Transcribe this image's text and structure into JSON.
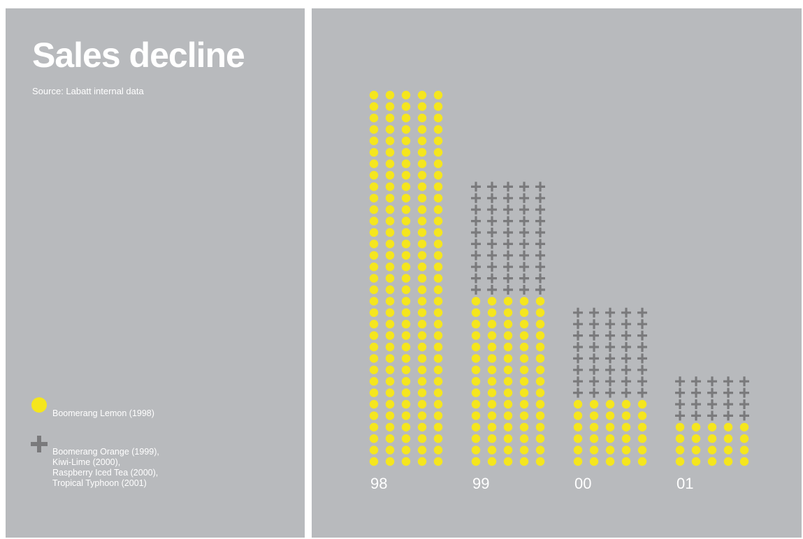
{
  "title": "Sales decline",
  "subtitle": "Source: Labatt internal data",
  "legend": {
    "lemon": {
      "label": "Boomerang Lemon (1998)",
      "icon": "yellow-dot-icon",
      "color": "#f5e61e"
    },
    "others": {
      "label": "Boomerang Orange (1999),\nKiwi-Lime (2000),\nRaspberry Iced Tea (2000),\nTropical Typhoon (2001)",
      "icon": "gray-plus-icon",
      "color": "#7a7a7c"
    }
  },
  "chart_data": {
    "type": "bar",
    "style": "stacked pictogram",
    "categories": [
      "98",
      "99",
      "00",
      "01"
    ],
    "series": [
      {
        "name": "Boomerang Lemon (1998)",
        "marker": "dot",
        "color": "#f5e61e",
        "values": [
          33,
          15,
          6,
          4
        ]
      },
      {
        "name": "Boomerang Orange (1999), Kiwi-Lime (2000), Raspberry Iced Tea (2000), Tropical Typhoon (2001)",
        "marker": "plus",
        "color": "#7a7a7c",
        "values": [
          0,
          10,
          8,
          4
        ]
      }
    ],
    "units_per_row": 5,
    "title": "Sales decline",
    "subtitle": "Source: Labatt internal data",
    "xlabel": "",
    "ylabel": "",
    "grid": false,
    "legend_position": "bottom-left"
  }
}
